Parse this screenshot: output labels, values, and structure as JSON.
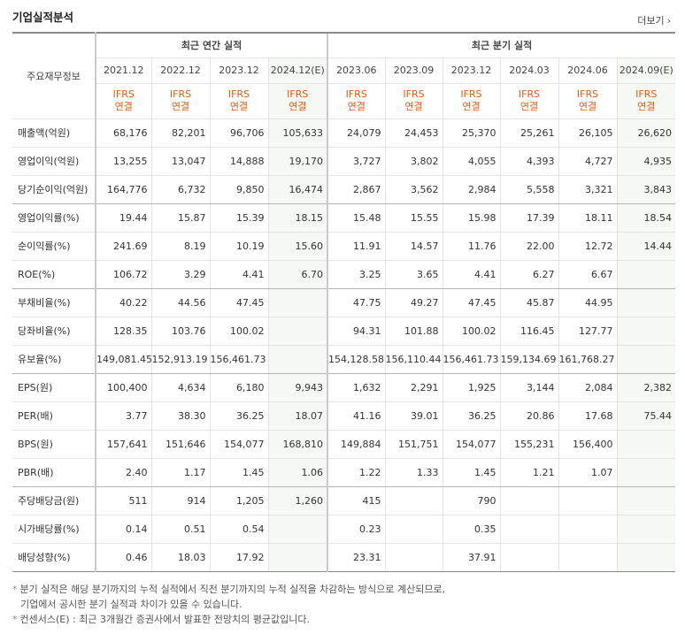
{
  "header": {
    "title": "기업실적분석",
    "more": "더보기",
    "more_icon": "chevron-right-icon"
  },
  "groups": {
    "annual": "최근 연간 실적",
    "quarter": "최근 분기 실적"
  },
  "label_header": "주요재무정보",
  "periods": [
    "2021.12",
    "2022.12",
    "2023.12",
    "2024.12(E)",
    "2023.06",
    "2023.09",
    "2023.12",
    "2024.03",
    "2024.06",
    "2024.09(E)"
  ],
  "basis": {
    "line1": "IFRS",
    "line2": "연결"
  },
  "rows": [
    {
      "label": "매출액(억원)",
      "values": [
        "68,176",
        "82,201",
        "96,706",
        "105,633",
        "24,079",
        "24,453",
        "25,370",
        "25,261",
        "26,105",
        "26,620"
      ]
    },
    {
      "label": "영업이익(억원)",
      "values": [
        "13,255",
        "13,047",
        "14,888",
        "19,170",
        "3,727",
        "3,802",
        "4,055",
        "4,393",
        "4,727",
        "4,935"
      ]
    },
    {
      "label": "당기순이익(억원)",
      "values": [
        "164,776",
        "6,732",
        "9,850",
        "16,474",
        "2,867",
        "3,562",
        "2,984",
        "5,558",
        "3,321",
        "3,843"
      ]
    },
    {
      "label": "영업이익률(%)",
      "values": [
        "19.44",
        "15.87",
        "15.39",
        "18.15",
        "15.48",
        "15.55",
        "15.98",
        "17.39",
        "18.11",
        "18.54"
      ]
    },
    {
      "label": "순이익률(%)",
      "values": [
        "241.69",
        "8.19",
        "10.19",
        "15.60",
        "11.91",
        "14.57",
        "11.76",
        "22.00",
        "12.72",
        "14.44"
      ]
    },
    {
      "label": "ROE(%)",
      "values": [
        "106.72",
        "3.29",
        "4.41",
        "6.70",
        "3.25",
        "3.65",
        "4.41",
        "6.27",
        "6.67",
        ""
      ]
    },
    {
      "label": "부채비율(%)",
      "values": [
        "40.22",
        "44.56",
        "47.45",
        "",
        "47.75",
        "49.27",
        "47.45",
        "45.87",
        "44.95",
        ""
      ]
    },
    {
      "label": "당좌비율(%)",
      "values": [
        "128.35",
        "103.76",
        "100.02",
        "",
        "94.31",
        "101.88",
        "100.02",
        "116.45",
        "127.77",
        ""
      ]
    },
    {
      "label": "유보율(%)",
      "values": [
        "149,081.45",
        "152,913.19",
        "156,461.73",
        "",
        "154,128.58",
        "156,110.44",
        "156,461.73",
        "159,134.69",
        "161,768.27",
        ""
      ]
    },
    {
      "label": "EPS(원)",
      "values": [
        "100,400",
        "4,634",
        "6,180",
        "9,943",
        "1,632",
        "2,291",
        "1,925",
        "3,144",
        "2,084",
        "2,382"
      ]
    },
    {
      "label": "PER(배)",
      "values": [
        "3.77",
        "38.30",
        "36.25",
        "18.07",
        "41.16",
        "39.01",
        "36.25",
        "20.86",
        "17.68",
        "75.44"
      ]
    },
    {
      "label": "BPS(원)",
      "values": [
        "157,641",
        "151,646",
        "154,077",
        "168,810",
        "149,884",
        "151,751",
        "154,077",
        "155,231",
        "156,400",
        ""
      ]
    },
    {
      "label": "PBR(배)",
      "values": [
        "2.40",
        "1.17",
        "1.45",
        "1.06",
        "1.22",
        "1.33",
        "1.45",
        "1.21",
        "1.07",
        ""
      ]
    },
    {
      "label": "주당배당금(원)",
      "values": [
        "511",
        "914",
        "1,205",
        "1,260",
        "415",
        "",
        "790",
        "",
        "",
        ""
      ]
    },
    {
      "label": "시가배당률(%)",
      "values": [
        "0.14",
        "0.51",
        "0.54",
        "",
        "0.23",
        "",
        "0.35",
        "",
        "",
        ""
      ]
    },
    {
      "label": "배당성향(%)",
      "values": [
        "0.46",
        "18.03",
        "17.92",
        "",
        "23.31",
        "",
        "37.91",
        "",
        "",
        ""
      ]
    }
  ],
  "notes": [
    "분기 실적은 해당 분기까지의 누적 실적에서 직전 분기까지의 누적 실적을 차감하는 방식으로 계산되므로,",
    "기업에서 공시한 분기 실적과 차이가 있을 수 있습니다.",
    "컨센서스(E) : 최근 3개월간 증권사에서 발표한 전망치의 평균값입니다."
  ],
  "colors": {
    "ifrs": "#e8590c",
    "estimate_bg": "#f6f8f3"
  }
}
